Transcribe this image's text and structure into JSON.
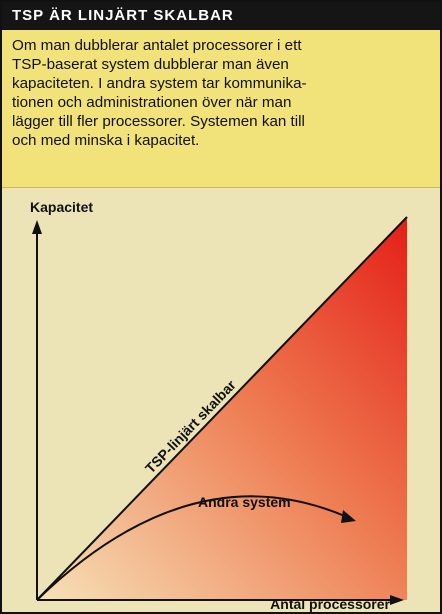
{
  "header": {
    "title": "TSP ÄR LINJÄRT SKALBAR"
  },
  "body": {
    "lines": [
      "Om man dubblerar antalet processorer i ett",
      "TSP-baserat system dubblerar man även",
      "kapaciteten. I andra system tar kommunika-",
      "tionen och administrationen över när man",
      "lägger till fler processorer. Systemen kan till",
      "och med minska i kapacitet."
    ]
  },
  "diagram": {
    "y_axis_label": "Kapacitet",
    "x_axis_label": "Antal processorer",
    "line_label": "TSP-linjärt skalbar",
    "curve_label": "Andra system"
  }
}
